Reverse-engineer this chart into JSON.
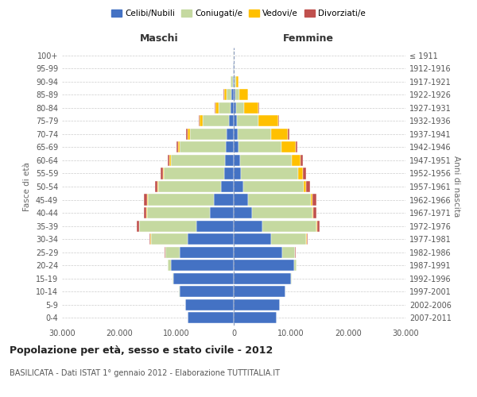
{
  "age_groups": [
    "0-4",
    "5-9",
    "10-14",
    "15-19",
    "20-24",
    "25-29",
    "30-34",
    "35-39",
    "40-44",
    "45-49",
    "50-54",
    "55-59",
    "60-64",
    "65-69",
    "70-74",
    "75-79",
    "80-84",
    "85-89",
    "90-94",
    "95-99",
    "100+"
  ],
  "birth_years": [
    "2007-2011",
    "2002-2006",
    "1997-2001",
    "1992-1996",
    "1987-1991",
    "1982-1986",
    "1977-1981",
    "1972-1976",
    "1967-1971",
    "1962-1966",
    "1957-1961",
    "1952-1956",
    "1947-1951",
    "1942-1946",
    "1937-1941",
    "1932-1936",
    "1927-1931",
    "1922-1926",
    "1917-1921",
    "1912-1916",
    "≤ 1911"
  ],
  "maschi": {
    "celibi": [
      8000,
      8500,
      9500,
      10500,
      11000,
      9500,
      8000,
      6500,
      4200,
      3500,
      2200,
      1700,
      1500,
      1400,
      1200,
      900,
      600,
      400,
      200,
      80,
      50
    ],
    "coniugati": [
      10,
      30,
      50,
      200,
      500,
      2500,
      6500,
      10000,
      11000,
      11500,
      11000,
      10500,
      9500,
      8000,
      6500,
      4500,
      2000,
      900,
      300,
      60,
      20
    ],
    "vedovi": [
      0,
      0,
      0,
      5,
      5,
      10,
      20,
      40,
      60,
      80,
      100,
      150,
      200,
      300,
      400,
      600,
      600,
      400,
      100,
      20,
      5
    ],
    "divorziati": [
      0,
      0,
      5,
      10,
      20,
      80,
      200,
      400,
      500,
      550,
      500,
      450,
      350,
      300,
      250,
      150,
      80,
      50,
      20,
      10,
      2
    ]
  },
  "femmine": {
    "nubili": [
      7500,
      8000,
      9000,
      10000,
      10500,
      8500,
      6500,
      5000,
      3200,
      2500,
      1700,
      1300,
      1100,
      900,
      700,
      500,
      350,
      250,
      150,
      50,
      30
    ],
    "coniugate": [
      5,
      20,
      40,
      150,
      450,
      2200,
      6200,
      9500,
      10500,
      11000,
      10500,
      10000,
      9000,
      7500,
      5800,
      3800,
      1500,
      700,
      200,
      40,
      10
    ],
    "vedove": [
      0,
      0,
      0,
      5,
      10,
      20,
      50,
      100,
      150,
      200,
      400,
      800,
      1500,
      2500,
      3000,
      3500,
      2500,
      1500,
      500,
      80,
      20
    ],
    "divorziate": [
      0,
      0,
      5,
      10,
      30,
      100,
      200,
      400,
      600,
      700,
      700,
      600,
      500,
      250,
      200,
      150,
      100,
      50,
      20,
      10,
      2
    ]
  },
  "colors": {
    "celibi_nubili": "#4472c4",
    "coniugati": "#c5d9a0",
    "vedovi": "#ffc000",
    "divorziati": "#c0504d"
  },
  "xlim": 30000,
  "xticks": [
    -30000,
    -20000,
    -10000,
    0,
    10000,
    20000,
    30000
  ],
  "xticklabels": [
    "30.000",
    "20.000",
    "10.000",
    "0",
    "10.000",
    "20.000",
    "30.000"
  ],
  "title": "Popolazione per età, sesso e stato civile - 2012",
  "subtitle": "BASILICATA - Dati ISTAT 1° gennaio 2012 - Elaborazione TUTTITALIA.IT",
  "ylabel_left": "Fasce di età",
  "ylabel_right": "Anni di nascita",
  "maschi_label": "Maschi",
  "femmine_label": "Femmine",
  "legend_labels": [
    "Celibi/Nubili",
    "Coniugati/e",
    "Vedovi/e",
    "Divorziati/e"
  ],
  "background_color": "#ffffff",
  "grid_color": "#cccccc"
}
